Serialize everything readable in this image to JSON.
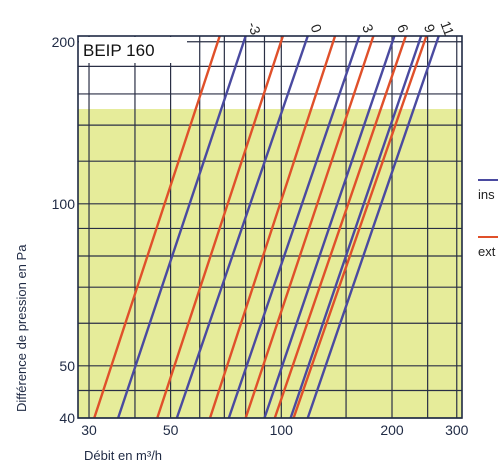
{
  "chart_data": {
    "type": "line",
    "title": "BEIP 160",
    "xlabel": "Débit en m³/h",
    "ylabel": "Différence de pression en Pa",
    "x_scale": "log",
    "y_scale": "log",
    "xlim": [
      28,
      310
    ],
    "ylim": [
      40,
      205
    ],
    "x_ticks": [
      30,
      50,
      100,
      200,
      300
    ],
    "y_ticks": [
      40,
      50,
      100,
      200
    ],
    "grid": true,
    "highlight_band": {
      "y_max": 150,
      "color": "#e6ec9a"
    },
    "legend": [
      {
        "name": "ins",
        "color": "#4a4aa0"
      },
      {
        "name": "ext",
        "color": "#e0502a"
      }
    ],
    "series": [
      {
        "name": "ins",
        "color": "#4a4aa0",
        "label": "-3",
        "points": [
          [
            36,
            40
          ],
          [
            80,
            205
          ]
        ]
      },
      {
        "name": "ext",
        "color": "#e0502a",
        "points": [
          [
            31,
            40
          ],
          [
            68,
            205
          ]
        ]
      },
      {
        "name": "ins",
        "color": "#4a4aa0",
        "label": "0",
        "points": [
          [
            52,
            40
          ],
          [
            118,
            205
          ]
        ]
      },
      {
        "name": "ext",
        "color": "#e0502a",
        "points": [
          [
            46,
            40
          ],
          [
            101,
            205
          ]
        ]
      },
      {
        "name": "ins",
        "color": "#4a4aa0",
        "label": "3",
        "points": [
          [
            72,
            40
          ],
          [
            163,
            205
          ]
        ]
      },
      {
        "name": "ext",
        "color": "#e0502a",
        "points": [
          [
            64,
            40
          ],
          [
            140,
            205
          ]
        ]
      },
      {
        "name": "ins",
        "color": "#4a4aa0",
        "label": "6",
        "points": [
          [
            90,
            40
          ],
          [
            203,
            205
          ]
        ]
      },
      {
        "name": "ext",
        "color": "#e0502a",
        "points": [
          [
            80,
            40
          ],
          [
            178,
            205
          ]
        ]
      },
      {
        "name": "ins",
        "color": "#4a4aa0",
        "label": "9",
        "points": [
          [
            106,
            40
          ],
          [
            240,
            205
          ]
        ]
      },
      {
        "name": "ext",
        "color": "#e0502a",
        "points": [
          [
            96,
            40
          ],
          [
            218,
            205
          ]
        ]
      },
      {
        "name": "ins",
        "color": "#4a4aa0",
        "label": "11",
        "points": [
          [
            118,
            40
          ],
          [
            268,
            205
          ]
        ]
      },
      {
        "name": "ext",
        "color": "#e0502a",
        "points": [
          [
            108,
            40
          ],
          [
            248,
            205
          ]
        ]
      }
    ]
  }
}
